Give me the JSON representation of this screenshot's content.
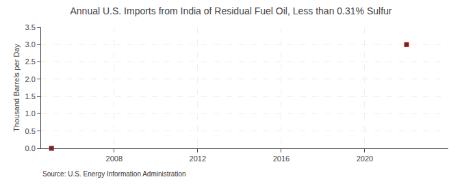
{
  "chart_data": {
    "type": "scatter",
    "title": "Annual U.S. Imports from India of Residual Fuel Oil, Less than 0.31% Sulfur",
    "ylabel": "Thousand Barrels per Day",
    "source": "Source: U.S. Energy Information Administration",
    "x": [
      2005,
      2022
    ],
    "values": [
      0.0,
      3.0
    ],
    "color": "#8b1a1a",
    "marker": "square",
    "xlim": [
      2004.5,
      2024
    ],
    "xticks": [
      2008,
      2012,
      2016,
      2020
    ],
    "ylim": [
      0.0,
      3.5
    ],
    "yticks": [
      {
        "value": 0.0,
        "label": "0.0"
      },
      0.5,
      {
        "value": 1.0,
        "label": "1.0"
      },
      1.5,
      {
        "value": 2.0,
        "label": "2.0"
      },
      2.5,
      {
        "value": 3.0,
        "label": "3.0"
      },
      3.5
    ],
    "grid": true
  }
}
